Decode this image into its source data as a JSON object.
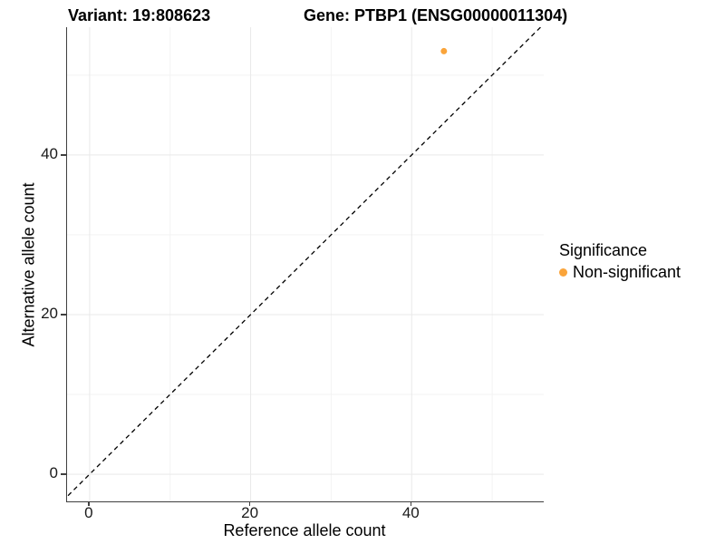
{
  "header": {
    "variant_title": "Variant: 19:808623",
    "gene_title": "Gene: PTBP1 (ENSG00000011304)"
  },
  "axes": {
    "x_label": "Reference allele count",
    "y_label": "Alternative allele count"
  },
  "legend": {
    "title": "Significance",
    "items": [
      {
        "label": "Non-significant",
        "color": "#FAA43A"
      }
    ]
  },
  "chart_data": {
    "type": "scatter",
    "title": "Variant: 19:808623 | Gene: PTBP1 (ENSG00000011304)",
    "xlabel": "Reference allele count",
    "ylabel": "Alternative allele count",
    "xlim": [
      -2.8,
      56.4
    ],
    "ylim": [
      -3.4,
      56.0
    ],
    "x_ticks": [
      0,
      20,
      40
    ],
    "y_ticks": [
      0,
      20,
      40
    ],
    "x_minor_gridlines": [
      10,
      30,
      50
    ],
    "y_minor_gridlines": [
      10,
      30,
      50
    ],
    "grid": true,
    "legend_position": "right",
    "identity_line": {
      "style": "dashed",
      "from": [
        -3.4,
        -3.4
      ],
      "to": [
        56.4,
        56.4
      ]
    },
    "series": [
      {
        "name": "Non-significant",
        "color": "#FAA43A",
        "points": [
          {
            "x": 44,
            "y": 53
          }
        ]
      }
    ],
    "colors": {
      "point": "#FAA43A",
      "grid_major": "#e9e9e9",
      "grid_minor": "#f3f3f3",
      "axis_line": "#3f3f3f",
      "dashed_line": "#000000"
    }
  }
}
